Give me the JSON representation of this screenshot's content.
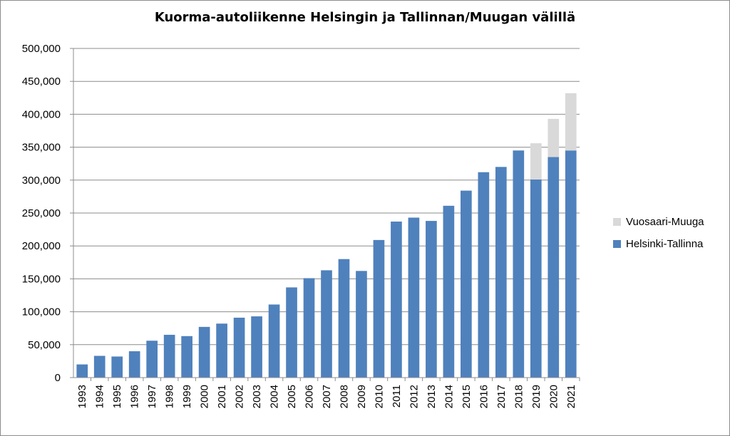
{
  "chart_data": {
    "type": "bar",
    "stacked": true,
    "title": "Kuorma-autoliikenne Helsingin ja Tallinnan/Muugan välillä",
    "xlabel": "",
    "ylabel": "",
    "ylim": [
      0,
      500000
    ],
    "y_ticks": [
      0,
      50000,
      100000,
      150000,
      200000,
      250000,
      300000,
      350000,
      400000,
      450000,
      500000
    ],
    "y_tick_labels": [
      "0",
      "50,000",
      "100,000",
      "150,000",
      "200,000",
      "250,000",
      "300,000",
      "350,000",
      "400,000",
      "450,000",
      "500,000"
    ],
    "grid": true,
    "legend_position": "right",
    "categories": [
      "1993",
      "1994",
      "1995",
      "1996",
      "1997",
      "1998",
      "1999",
      "2000",
      "2001",
      "2002",
      "2003",
      "2004",
      "2005",
      "2006",
      "2007",
      "2008",
      "2009",
      "2010",
      "2011",
      "2012",
      "2013",
      "2014",
      "2015",
      "2016",
      "2017",
      "2018",
      "2019",
      "2020",
      "2021"
    ],
    "series": [
      {
        "name": "Helsinki-Tallinna",
        "color": "#4f81bd",
        "values": [
          20000,
          33000,
          32000,
          40000,
          56000,
          65000,
          63000,
          77000,
          82000,
          91000,
          93000,
          111000,
          137000,
          151000,
          163000,
          180000,
          162000,
          209000,
          237000,
          243000,
          238000,
          261000,
          284000,
          312000,
          320000,
          345000,
          301000,
          335000,
          345000
        ]
      },
      {
        "name": "Vuosaari-Muuga",
        "color": "#d9d9d9",
        "values": [
          0,
          0,
          0,
          0,
          0,
          0,
          0,
          0,
          0,
          0,
          0,
          0,
          0,
          0,
          0,
          0,
          0,
          0,
          0,
          0,
          0,
          0,
          0,
          0,
          0,
          0,
          55000,
          58000,
          87000
        ]
      }
    ],
    "legend_order": [
      "Vuosaari-Muuga",
      "Helsinki-Tallinna"
    ]
  }
}
